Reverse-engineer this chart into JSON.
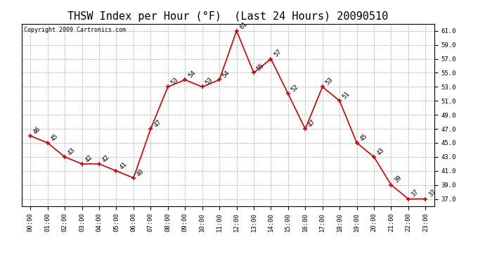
{
  "title": "THSW Index per Hour (°F)  (Last 24 Hours) 20090510",
  "copyright": "Copyright 2009 Cartronics.com",
  "hours": [
    "00:00",
    "01:00",
    "02:00",
    "03:00",
    "04:00",
    "05:00",
    "06:00",
    "07:00",
    "08:00",
    "09:00",
    "10:00",
    "11:00",
    "12:00",
    "13:00",
    "14:00",
    "15:00",
    "16:00",
    "17:00",
    "18:00",
    "19:00",
    "20:00",
    "21:00",
    "22:00",
    "23:00"
  ],
  "values": [
    46,
    45,
    43,
    42,
    42,
    41,
    40,
    47,
    53,
    54,
    53,
    54,
    61,
    55,
    57,
    52,
    47,
    53,
    51,
    45,
    43,
    39,
    37,
    37
  ],
  "line_color": "#cc0000",
  "marker_color": "#cc0000",
  "bg_color": "#ffffff",
  "plot_bg_color": "#ffffff",
  "grid_color": "#aaaaaa",
  "ylim_min": 36.0,
  "ylim_max": 62.0,
  "yticks": [
    37.0,
    39.0,
    41.0,
    43.0,
    45.0,
    47.0,
    49.0,
    51.0,
    53.0,
    55.0,
    57.0,
    59.0,
    61.0
  ],
  "title_fontsize": 11,
  "label_fontsize": 6.5,
  "tick_fontsize": 6.5,
  "copyright_fontsize": 6
}
